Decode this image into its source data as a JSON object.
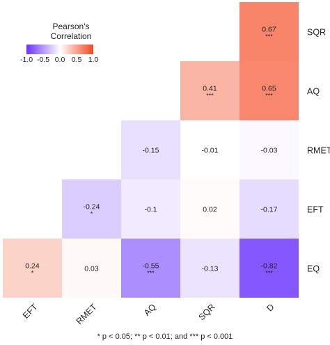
{
  "chart_data": {
    "type": "heatmap",
    "title": "",
    "x_categories": [
      "EFT",
      "RMET",
      "AQ",
      "SQR",
      "D"
    ],
    "y_categories": [
      "SQR",
      "AQ",
      "RMET",
      "EFT",
      "EQ"
    ],
    "cells": [
      {
        "x": "D",
        "y": "SQR",
        "value": 0.67,
        "sig": "***"
      },
      {
        "x": "SQR",
        "y": "AQ",
        "value": 0.41,
        "sig": "***"
      },
      {
        "x": "D",
        "y": "AQ",
        "value": 0.65,
        "sig": "***"
      },
      {
        "x": "AQ",
        "y": "RMET",
        "value": -0.15,
        "sig": ""
      },
      {
        "x": "SQR",
        "y": "RMET",
        "value": -0.01,
        "sig": ""
      },
      {
        "x": "D",
        "y": "RMET",
        "value": -0.03,
        "sig": ""
      },
      {
        "x": "RMET",
        "y": "EFT",
        "value": -0.24,
        "sig": "*"
      },
      {
        "x": "AQ",
        "y": "EFT",
        "value": -0.1,
        "sig": ""
      },
      {
        "x": "SQR",
        "y": "EFT",
        "value": 0.02,
        "sig": ""
      },
      {
        "x": "D",
        "y": "EFT",
        "value": -0.17,
        "sig": ""
      },
      {
        "x": "EFT",
        "y": "EQ",
        "value": 0.24,
        "sig": "*"
      },
      {
        "x": "RMET",
        "y": "EQ",
        "value": 0.03,
        "sig": ""
      },
      {
        "x": "AQ",
        "y": "EQ",
        "value": -0.55,
        "sig": "***"
      },
      {
        "x": "SQR",
        "y": "EQ",
        "value": -0.13,
        "sig": ""
      },
      {
        "x": "D",
        "y": "EQ",
        "value": -0.82,
        "sig": "***"
      }
    ],
    "legend": {
      "title_lines": [
        "Pearson's",
        "Correlation"
      ],
      "ticks": [
        "-1.0",
        "-0.5",
        "0.0",
        "0.5",
        "1.0"
      ],
      "range": [
        -1.0,
        1.0
      ],
      "placement": "top-left"
    },
    "colors": {
      "low": "#6a32ff",
      "mid": "#ffffff",
      "high": "#f4471f"
    },
    "footnote": "* p < 0.05; ** p < 0.01; and *** p < 0.001"
  }
}
